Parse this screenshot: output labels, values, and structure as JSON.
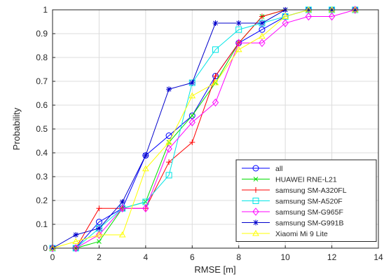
{
  "chart_data": {
    "type": "line",
    "xlabel": "RMSE [m]",
    "ylabel": "Probability",
    "xlim": [
      0,
      14
    ],
    "ylim": [
      0,
      1
    ],
    "xticks": [
      0,
      2,
      4,
      6,
      8,
      10,
      12,
      14
    ],
    "yticks": [
      0,
      0.1,
      0.2,
      0.3,
      0.4,
      0.5,
      0.6,
      0.7,
      0.8,
      0.9,
      1
    ],
    "grid": true,
    "legend_position": "bottom-right",
    "series": [
      {
        "name": "all",
        "color": "#0000ff",
        "marker": "circle",
        "x": [
          0,
          1,
          2,
          3,
          4,
          5,
          6,
          7,
          8,
          9,
          10,
          11,
          12,
          13
        ],
        "y": [
          0,
          0,
          0.11,
          0.167,
          0.389,
          0.472,
          0.556,
          0.722,
          0.861,
          0.917,
          0.972,
          1,
          1,
          1
        ]
      },
      {
        "name": "HUAWEI RNE-L21",
        "color": "#00dd00",
        "marker": "x",
        "x": [
          0,
          1,
          2,
          3,
          4,
          5,
          6,
          7,
          8,
          9,
          10,
          11,
          12,
          13
        ],
        "y": [
          0,
          0,
          0.028,
          0.167,
          0.194,
          0.444,
          0.556,
          0.694,
          0.861,
          0.972,
          1,
          1,
          1,
          1
        ]
      },
      {
        "name": "samsung SM-A320FL",
        "color": "#ff0000",
        "marker": "plus",
        "x": [
          0,
          1,
          2,
          3,
          4,
          5,
          6,
          7,
          8,
          9,
          10,
          11,
          12,
          13
        ],
        "y": [
          0,
          0,
          0.167,
          0.167,
          0.167,
          0.361,
          0.444,
          0.722,
          0.861,
          0.972,
          1,
          1,
          1,
          1
        ]
      },
      {
        "name": "samsung SM-A520F",
        "color": "#00e5e5",
        "marker": "square",
        "x": [
          0,
          1,
          2,
          3,
          4,
          5,
          6,
          7,
          8,
          9,
          10,
          11,
          12,
          13
        ],
        "y": [
          0,
          0,
          0.083,
          0.167,
          0.194,
          0.306,
          0.694,
          0.833,
          0.917,
          0.944,
          0.972,
          1,
          1,
          1
        ]
      },
      {
        "name": "samsung SM-G965F",
        "color": "#ff00ff",
        "marker": "diamond",
        "x": [
          0,
          1,
          2,
          3,
          4,
          5,
          6,
          7,
          8,
          9,
          10,
          11,
          12,
          13
        ],
        "y": [
          0,
          0,
          0.056,
          0.167,
          0.167,
          0.417,
          0.528,
          0.611,
          0.861,
          0.861,
          0.944,
          0.972,
          0.972,
          1
        ]
      },
      {
        "name": "samsung SM-G991B",
        "color": "#0000cc",
        "marker": "asterisk",
        "x": [
          0,
          1,
          2,
          3,
          4,
          5,
          6,
          7,
          8,
          9,
          10,
          11,
          12,
          13
        ],
        "y": [
          0,
          0.056,
          0.083,
          0.194,
          0.389,
          0.667,
          0.694,
          0.944,
          0.944,
          0.944,
          1,
          1,
          1,
          1
        ]
      },
      {
        "name": "Xiaomi Mi 9 Lite",
        "color": "#ffff00",
        "marker": "triangle",
        "x": [
          0,
          1,
          2,
          3,
          4,
          5,
          6,
          7,
          8,
          9,
          10,
          11,
          12,
          13
        ],
        "y": [
          0,
          0.028,
          0.056,
          0.056,
          0.333,
          0.444,
          0.639,
          0.694,
          0.833,
          0.889,
          0.972,
          1,
          1,
          1
        ]
      }
    ]
  }
}
